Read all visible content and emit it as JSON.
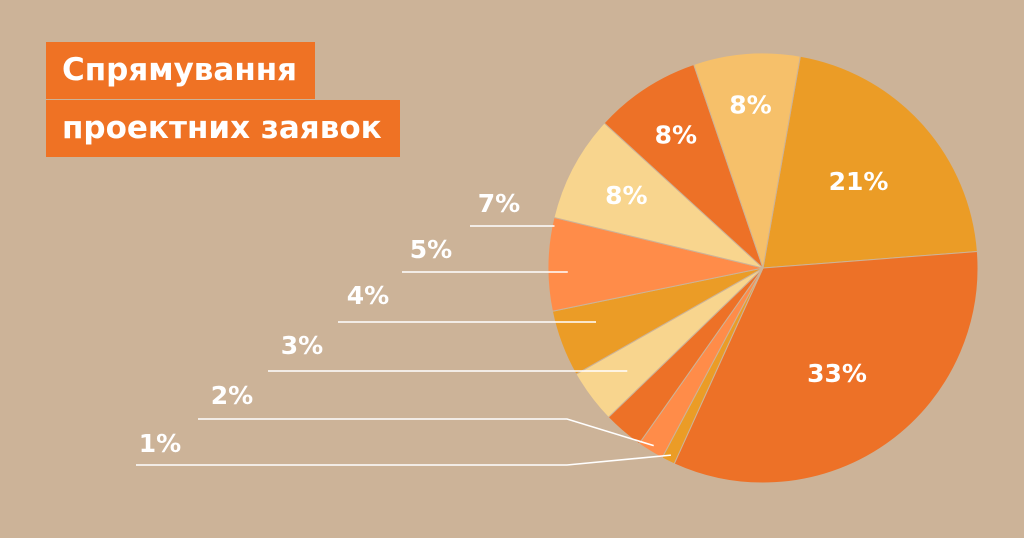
{
  "title_lines": [
    "Спрямування",
    "проектних заявок"
  ],
  "chart_data": {
    "type": "pie",
    "slices": [
      {
        "label": "21%",
        "value": 21,
        "color": "#eb9c26"
      },
      {
        "label": "33%",
        "value": 33,
        "color": "#ed7127"
      },
      {
        "label": "1%",
        "value": 1,
        "color": "#eb9c26"
      },
      {
        "label": "2%",
        "value": 2,
        "color": "#ff8c49"
      },
      {
        "label": "3%",
        "value": 3,
        "color": "#ed7127"
      },
      {
        "label": "4%",
        "value": 4,
        "color": "#f8d58e"
      },
      {
        "label": "5%",
        "value": 5,
        "color": "#eb9c26"
      },
      {
        "label": "7%",
        "value": 7,
        "color": "#ff8c49"
      },
      {
        "label": "8%",
        "value": 8,
        "color": "#f8d58e"
      },
      {
        "label": "8%",
        "value": 8,
        "color": "#ed7127"
      },
      {
        "label": "8%",
        "value": 8,
        "color": "#f6c06a"
      }
    ]
  }
}
